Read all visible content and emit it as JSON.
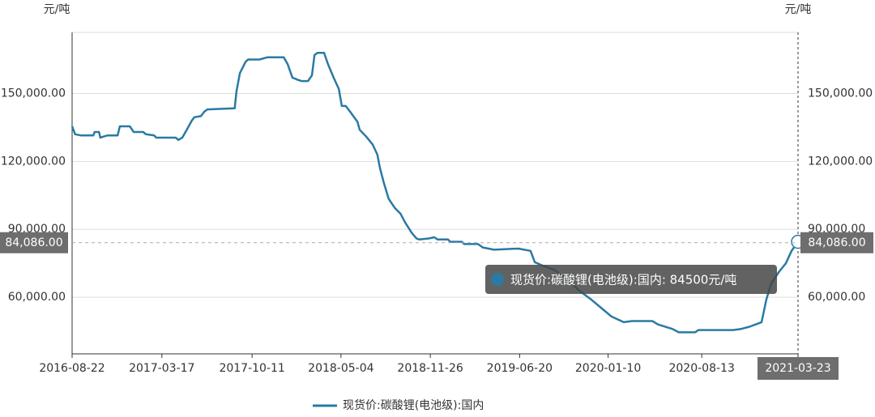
{
  "chart_data": {
    "type": "line",
    "ylabel": "元/吨",
    "x": [
      "2016-08-22",
      "2016-08-29",
      "2016-09-11",
      "2016-10-10",
      "2016-10-13",
      "2016-10-23",
      "2016-10-26",
      "2016-11-03",
      "2016-11-12",
      "2016-12-05",
      "2016-12-10",
      "2017-01-02",
      "2017-01-11",
      "2017-02-02",
      "2017-02-08",
      "2017-02-27",
      "2017-03-04",
      "2017-03-17",
      "2017-04-18",
      "2017-04-24",
      "2017-05-03",
      "2017-05-12",
      "2017-05-25",
      "2017-05-31",
      "2017-06-15",
      "2017-06-23",
      "2017-06-30",
      "2017-09-01",
      "2017-09-05",
      "2017-09-13",
      "2017-09-26",
      "2017-10-02",
      "2017-10-28",
      "2017-11-15",
      "2017-12-23",
      "2018-01-01",
      "2018-01-12",
      "2018-01-25",
      "2018-02-02",
      "2018-02-17",
      "2018-02-26",
      "2018-03-04",
      "2018-03-11",
      "2018-03-26",
      "2018-04-04",
      "2018-04-17",
      "2018-04-29",
      "2018-05-06",
      "2018-05-15",
      "2018-05-25",
      "2018-06-11",
      "2018-06-16",
      "2018-07-01",
      "2018-07-16",
      "2018-07-27",
      "2018-08-02",
      "2018-08-11",
      "2018-08-22",
      "2018-09-05",
      "2018-09-18",
      "2018-09-29",
      "2018-10-14",
      "2018-10-25",
      "2018-11-01",
      "2018-11-24",
      "2018-12-05",
      "2018-12-13",
      "2019-01-06",
      "2019-01-11",
      "2019-02-07",
      "2019-02-12",
      "2019-03-16",
      "2019-03-27",
      "2019-04-22",
      "2019-06-17",
      "2019-07-15",
      "2019-07-25",
      "2019-08-12",
      "2019-09-09",
      "2019-10-07",
      "2019-11-04",
      "2019-12-02",
      "2019-12-30",
      "2020-01-18",
      "2020-02-15",
      "2020-03-05",
      "2020-04-21",
      "2020-05-04",
      "2020-06-06",
      "2020-06-21",
      "2020-07-29",
      "2020-08-05",
      "2020-10-24",
      "2020-11-12",
      "2020-12-01",
      "2020-12-29",
      "2021-01-09",
      "2021-01-20",
      "2021-02-08",
      "2021-02-23",
      "2021-03-08",
      "2021-03-23"
    ],
    "series": [
      {
        "name": "现货价:碳酸锂(电池级):国内",
        "color": "#2a7aa3",
        "values": [
          135500,
          132000,
          131500,
          131500,
          133000,
          133000,
          130500,
          131000,
          131500,
          131500,
          135500,
          135500,
          133000,
          133000,
          132000,
          131500,
          130500,
          130500,
          130500,
          129500,
          130500,
          133500,
          138000,
          139500,
          140000,
          142000,
          143000,
          143500,
          151000,
          159000,
          164000,
          165000,
          165000,
          166000,
          166000,
          163000,
          157000,
          156000,
          155500,
          155500,
          158000,
          167000,
          168000,
          168000,
          163000,
          157000,
          152000,
          144500,
          144500,
          142000,
          137500,
          134000,
          131000,
          127500,
          123000,
          117000,
          110500,
          103500,
          99500,
          97000,
          93000,
          88500,
          86000,
          85500,
          86000,
          86500,
          85500,
          85500,
          84500,
          84500,
          83500,
          83500,
          82000,
          81000,
          81500,
          80500,
          75500,
          74000,
          72000,
          68000,
          63000,
          59000,
          54500,
          51500,
          49000,
          49500,
          49500,
          48000,
          46000,
          44500,
          44500,
          45500,
          45500,
          46000,
          47000,
          49000,
          59000,
          66000,
          71500,
          75000,
          80500,
          84500
        ]
      }
    ],
    "xlim": [
      "2016-08-22",
      "2021-03-23"
    ],
    "xticks": [
      "2016-08-22",
      "2017-03-17",
      "2017-10-11",
      "2018-05-04",
      "2018-11-26",
      "2019-06-20",
      "2020-01-10",
      "2020-08-13",
      "2021-03-23"
    ],
    "ylim": [
      35000,
      177000
    ],
    "yticks": [
      {
        "value": 60000,
        "label": "60,000.00"
      },
      {
        "value": 90000,
        "label": "90,000.00"
      },
      {
        "value": 120000,
        "label": "120,000.00"
      },
      {
        "value": 150000,
        "label": "150,000.00"
      }
    ],
    "grid": true,
    "crosshair": {
      "value": 84086,
      "label": "84,086.00"
    },
    "tooltip": "现货价:碳酸锂(电池级):国内: 84500元/吨",
    "legend": "bottom"
  }
}
